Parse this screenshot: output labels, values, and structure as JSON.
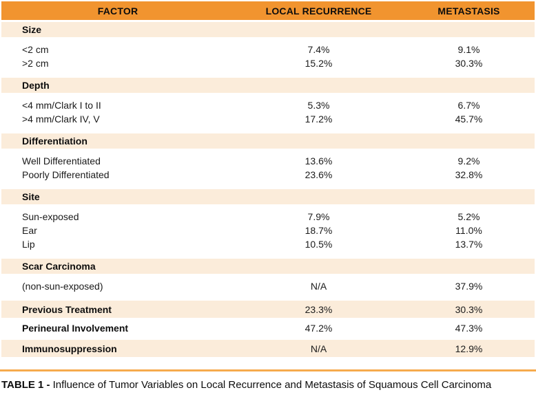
{
  "header": {
    "factor": "FACTOR",
    "local_recurrence": "LOCAL RECURRENCE",
    "metastasis": "METASTASIS"
  },
  "sections": [
    {
      "title": "Size",
      "rows": [
        [
          "<2 cm",
          "7.4%",
          "9.1%"
        ],
        [
          ">2 cm",
          "15.2%",
          "30.3%"
        ]
      ]
    },
    {
      "title": "Depth",
      "rows": [
        [
          "<4 mm/Clark I to II",
          "5.3%",
          "6.7%"
        ],
        [
          ">4 mm/Clark IV, V",
          "17.2%",
          "45.7%"
        ]
      ]
    },
    {
      "title": "Differentiation",
      "rows": [
        [
          "Well Differentiated",
          "13.6%",
          "9.2%"
        ],
        [
          "Poorly Differentiated",
          "23.6%",
          "32.8%"
        ]
      ]
    },
    {
      "title": "Site",
      "rows": [
        [
          "Sun-exposed",
          "7.9%",
          "5.2%"
        ],
        [
          "Ear",
          "18.7%",
          "11.0%"
        ],
        [
          "Lip",
          "10.5%",
          "13.7%"
        ]
      ]
    },
    {
      "title": "Scar Carcinoma",
      "rows": [
        [
          "(non-sun-exposed)",
          "N/A",
          "37.9%"
        ]
      ]
    }
  ],
  "summary_rows": [
    {
      "label": "Previous Treatment",
      "lr": "23.3%",
      "met": "30.3%"
    },
    {
      "label": "Perineural Involvement",
      "lr": "47.2%",
      "met": "47.3%"
    },
    {
      "label": "Immunosuppression",
      "lr": "N/A",
      "met": "12.9%"
    }
  ],
  "caption": {
    "label": "TABLE 1 -",
    "text": "Influence of Tumor Variables on Local Recurrence and Metastasis of Squamous Cell Carcinoma"
  },
  "colors": {
    "header_orange": "#F1942F",
    "band_peach": "#FBECDA",
    "rule_orange": "#F6AA4D"
  }
}
